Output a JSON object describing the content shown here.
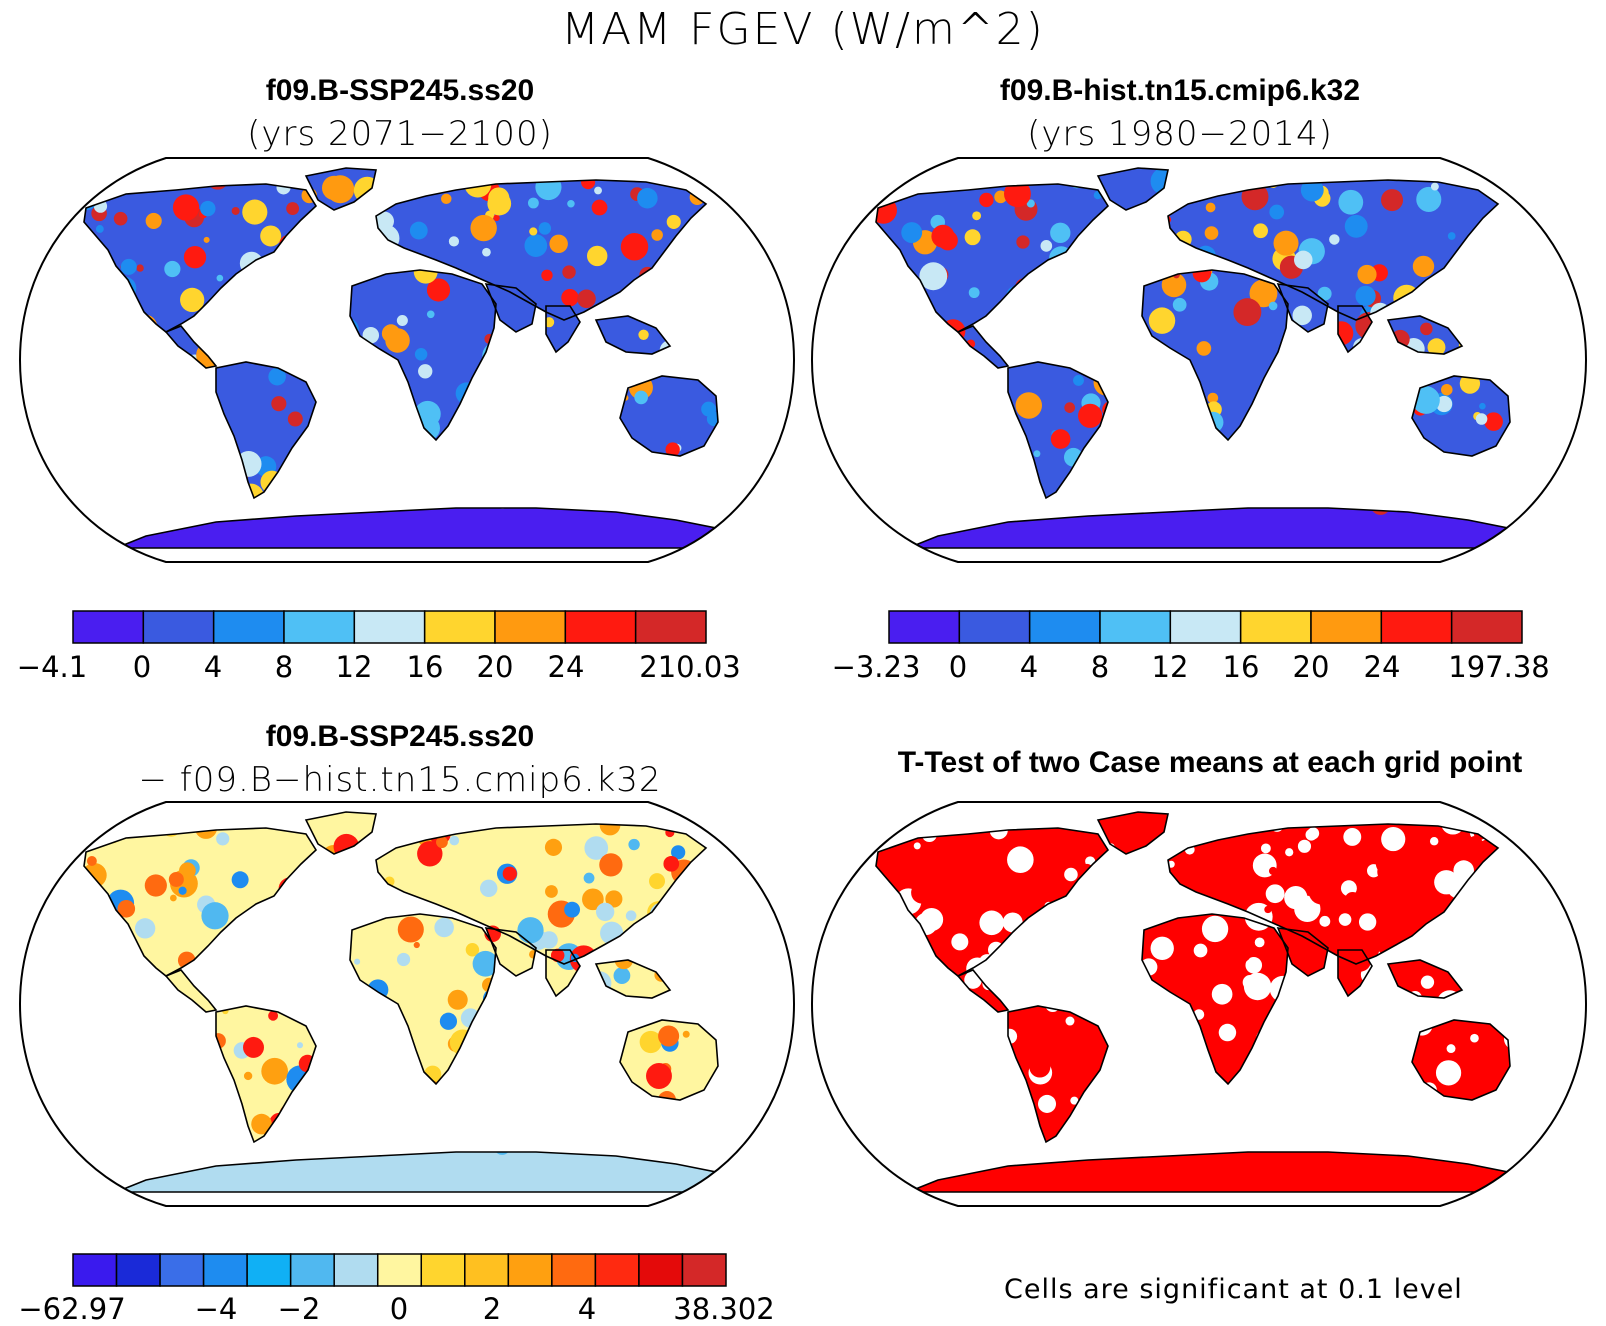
{
  "title": "MAM FGEV (W/m^2)",
  "panels": [
    {
      "title_line1": "f09.B-SSP245.ss20",
      "title_line2": "(yrs 2071−2100)",
      "kind": "case"
    },
    {
      "title_line1": "f09.B-hist.tn15.cmip6.k32",
      "title_line2": "(yrs 1980−2014)",
      "kind": "case"
    },
    {
      "title_line1": "f09.B-SSP245.ss20",
      "title_line2": "− f09.B−hist.tn15.cmip6.k32",
      "kind": "diff"
    },
    {
      "title_line1": "T-Test of two Case means at each grid point",
      "kind": "ttest",
      "note": "Cells are significant at 0.1 level"
    }
  ],
  "colorbars": [
    {
      "colors": [
        "#4a1ef0",
        "#3a5ae0",
        "#1e8cf0",
        "#4fc0f5",
        "#c8e8f5",
        "#ffd52e",
        "#ff9a10",
        "#ff1a10",
        "#d42828"
      ],
      "labels": [
        "−4.1",
        "0",
        "4",
        "8",
        "12",
        "16",
        "20",
        "24",
        "210.03"
      ]
    },
    {
      "colors": [
        "#4a1ef0",
        "#3a5ae0",
        "#1e8cf0",
        "#4fc0f5",
        "#c8e8f5",
        "#ffd52e",
        "#ff9a10",
        "#ff1a10",
        "#d42828"
      ],
      "labels": [
        "−3.23",
        "0",
        "4",
        "8",
        "12",
        "16",
        "20",
        "24",
        "197.38"
      ]
    },
    {
      "colors": [
        "#3a1aee",
        "#1a2ad8",
        "#3a6ee8",
        "#1e8cf0",
        "#10b0f5",
        "#50b8f0",
        "#b0dcf0",
        "#fff6a0",
        "#ffd52e",
        "#ffc020",
        "#ffa010",
        "#ff6a10",
        "#ff2a10",
        "#e40a0a",
        "#d42828"
      ],
      "labels": [
        "−62.97",
        "−4",
        "−2",
        "0",
        "2",
        "4",
        "38.302"
      ]
    }
  ],
  "legend_colors": {
    "significant": "#ff0000",
    "land_background": "#ffffff",
    "coastline": "#000000"
  }
}
